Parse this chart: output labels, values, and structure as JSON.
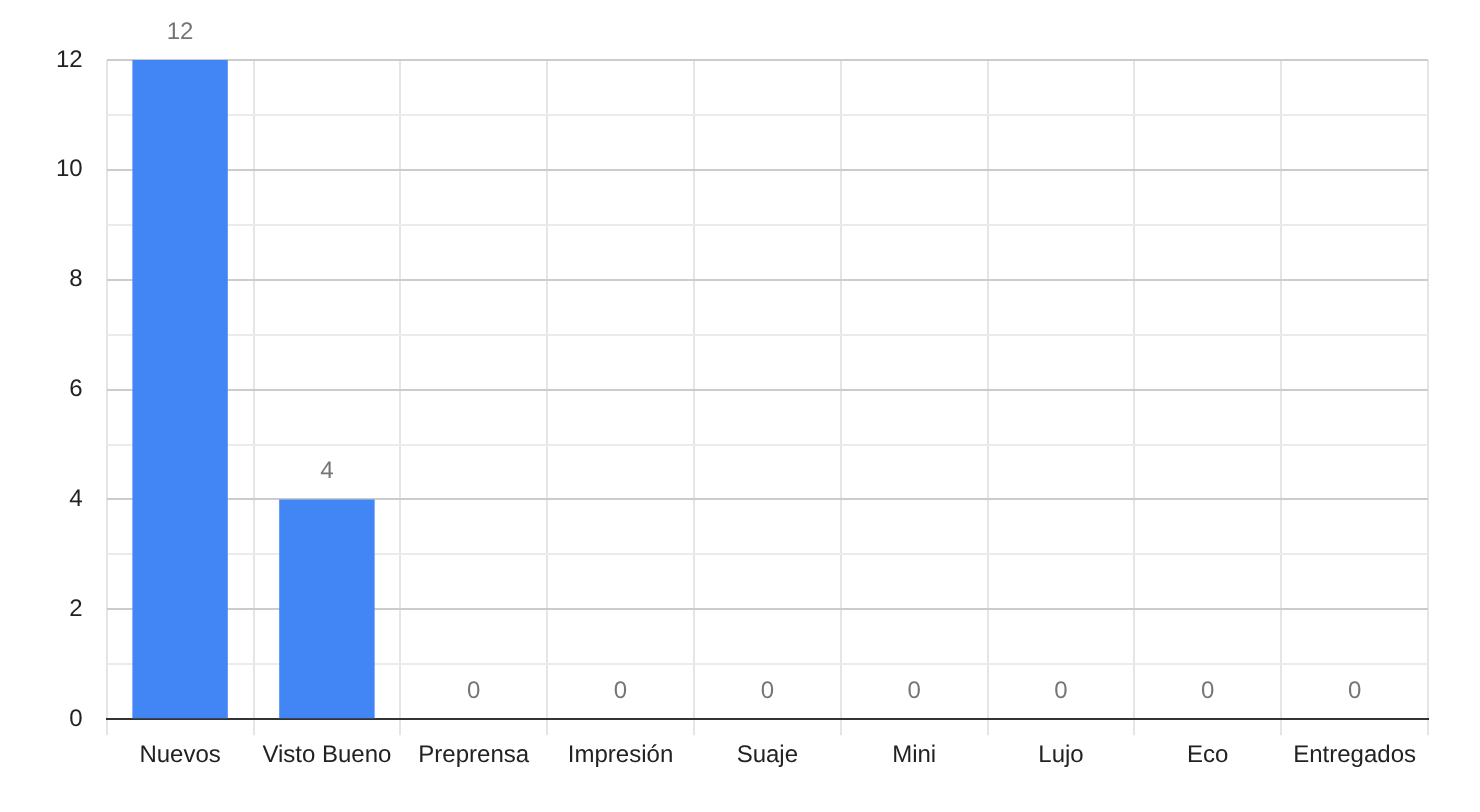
{
  "chart_data": {
    "type": "bar",
    "categories": [
      "Nuevos",
      "Visto Bueno",
      "Preprensa",
      "Impresión",
      "Suaje",
      "Mini",
      "Lujo",
      "Eco",
      "Entregados"
    ],
    "values": [
      12,
      4,
      0,
      0,
      0,
      0,
      0,
      0,
      0
    ],
    "color": "#4285f4",
    "ylim": [
      0,
      12
    ],
    "yticks": [
      0,
      {
        "value": 1,
        "label": null
      },
      2,
      {
        "value": 3,
        "label": null
      },
      4,
      {
        "value": 5,
        "label": null
      },
      6,
      {
        "value": 7,
        "label": null
      },
      8,
      {
        "value": 9,
        "label": null
      },
      10,
      {
        "value": 11,
        "label": null
      },
      12
    ],
    "grid": true,
    "data_labels": true,
    "legend": false
  }
}
